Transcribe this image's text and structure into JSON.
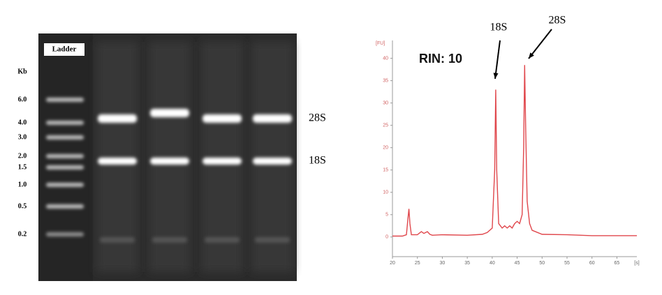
{
  "gel": {
    "ladder_label": "Ladder",
    "unit_label": "Kb",
    "ladder_sizes": [
      "6.0",
      "4.0",
      "3.0",
      "2.0",
      "1.5",
      "1.0",
      "0.5",
      "0.2"
    ],
    "band_labels": [
      "28S",
      "18S"
    ]
  },
  "chart_data": {
    "type": "line",
    "annotation": "RIN: 10",
    "peak_labels": [
      "18S",
      "28S"
    ],
    "ylabel": "[FU]",
    "xlabel": "[s]",
    "x": [
      20,
      22,
      22.8,
      23.1,
      23.3,
      23.5,
      23.8,
      25,
      25.8,
      26.3,
      27,
      27.5,
      28,
      30,
      35,
      38,
      39,
      40,
      40.5,
      40.7,
      40.9,
      41.3,
      42,
      42.5,
      43,
      43.5,
      44,
      44.5,
      45,
      45.5,
      46,
      46.3,
      46.5,
      46.7,
      47,
      47.5,
      48,
      50,
      55,
      60,
      65,
      69
    ],
    "values": [
      0.2,
      0.2,
      0.5,
      4,
      6.3,
      3,
      0.5,
      0.5,
      1.2,
      0.8,
      1.2,
      0.6,
      0.4,
      0.5,
      0.4,
      0.6,
      1,
      2,
      15,
      33,
      15,
      3,
      2,
      2.5,
      2,
      2.5,
      2,
      3,
      3.5,
      3,
      5,
      20,
      38.5,
      25,
      8,
      3,
      1.5,
      0.6,
      0.5,
      0.3,
      0.3,
      0.3
    ],
    "color": "#e0474c",
    "xlim": [
      20,
      69
    ],
    "ylim": [
      -4.4,
      44
    ],
    "xticks": [
      20,
      25,
      30,
      35,
      40,
      45,
      50,
      55,
      60,
      65
    ],
    "yticks": [
      0,
      5,
      10,
      15,
      20,
      25,
      30,
      35,
      40
    ]
  }
}
